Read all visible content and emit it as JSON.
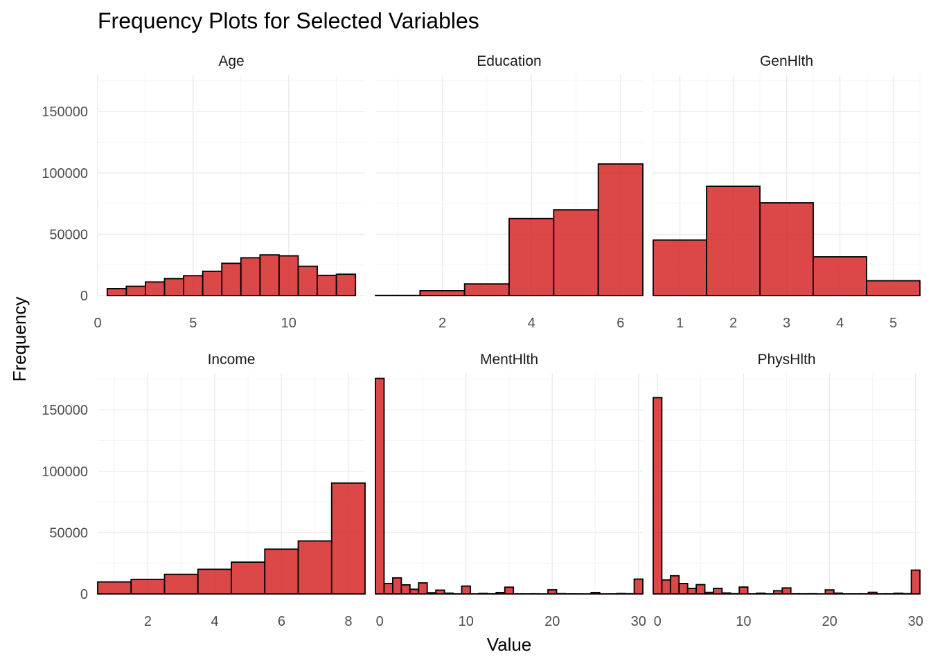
{
  "chart_data": {
    "type": "bar",
    "title": "Frequency Plots for Selected Variables",
    "xlabel": "Value",
    "ylabel": "Frequency",
    "fill_color": "#d62728",
    "edge_color": "#000000",
    "grid": true,
    "ylim": [
      0,
      180000
    ],
    "y_ticks": [
      0,
      50000,
      100000,
      150000
    ],
    "facets": [
      {
        "name": "Age",
        "xlim": [
          0,
          14
        ],
        "x_ticks": [
          0,
          5,
          10
        ],
        "bin_width": 1,
        "x": [
          1,
          2,
          3,
          4,
          5,
          6,
          7,
          8,
          9,
          10,
          11,
          12,
          13
        ],
        "values": [
          5700,
          7600,
          11100,
          13800,
          16200,
          19800,
          26300,
          30800,
          33200,
          32400,
          23900,
          16500,
          17400
        ]
      },
      {
        "name": "Education",
        "xlim": [
          0.5,
          6.5
        ],
        "x_ticks": [
          2,
          4,
          6
        ],
        "bin_width": 1,
        "x": [
          1,
          2,
          3,
          4,
          5,
          6
        ],
        "values": [
          170,
          4000,
          9500,
          62800,
          69900,
          107300
        ]
      },
      {
        "name": "GenHlth",
        "xlim": [
          0.5,
          5.5
        ],
        "x_ticks": [
          1,
          2,
          3,
          4,
          5
        ],
        "bin_width": 1,
        "x": [
          1,
          2,
          3,
          4,
          5
        ],
        "values": [
          45300,
          89100,
          75600,
          31600,
          12100
        ]
      },
      {
        "name": "Income",
        "xlim": [
          0.5,
          8.5
        ],
        "x_ticks": [
          2,
          4,
          6,
          8
        ],
        "bin_width": 1,
        "x": [
          1,
          2,
          3,
          4,
          5,
          6,
          7,
          8
        ],
        "values": [
          9800,
          11800,
          16000,
          20100,
          25900,
          36500,
          43200,
          90400
        ]
      },
      {
        "name": "MentHlth",
        "xlim": [
          -0.5,
          30.5
        ],
        "x_ticks": [
          0,
          10,
          20,
          30
        ],
        "bin_width": 1,
        "x": [
          0,
          1,
          2,
          3,
          4,
          5,
          6,
          7,
          8,
          9,
          10,
          11,
          12,
          13,
          14,
          15,
          16,
          17,
          18,
          19,
          20,
          21,
          22,
          23,
          24,
          25,
          26,
          27,
          28,
          29,
          30
        ],
        "values": [
          175700,
          8500,
          13100,
          7400,
          3800,
          9000,
          1000,
          3100,
          640,
          90,
          6400,
          40,
          400,
          100,
          1200,
          5500,
          90,
          50,
          100,
          20,
          3400,
          230,
          60,
          40,
          30,
          1200,
          40,
          80,
          330,
          160,
          12100
        ]
      },
      {
        "name": "PhysHlth",
        "xlim": [
          -0.5,
          30.5
        ],
        "x_ticks": [
          0,
          10,
          20,
          30
        ],
        "bin_width": 1,
        "x": [
          0,
          1,
          2,
          3,
          4,
          5,
          6,
          7,
          8,
          9,
          10,
          11,
          12,
          13,
          14,
          15,
          16,
          17,
          18,
          19,
          20,
          21,
          22,
          23,
          24,
          25,
          26,
          27,
          28,
          29,
          30
        ],
        "values": [
          160000,
          11400,
          14800,
          8500,
          4500,
          7600,
          1300,
          4500,
          800,
          180,
          5600,
          60,
          580,
          70,
          2600,
          4900,
          110,
          100,
          150,
          20,
          3300,
          660,
          70,
          60,
          90,
          1340,
          70,
          100,
          520,
          210,
          19400
        ]
      }
    ]
  }
}
